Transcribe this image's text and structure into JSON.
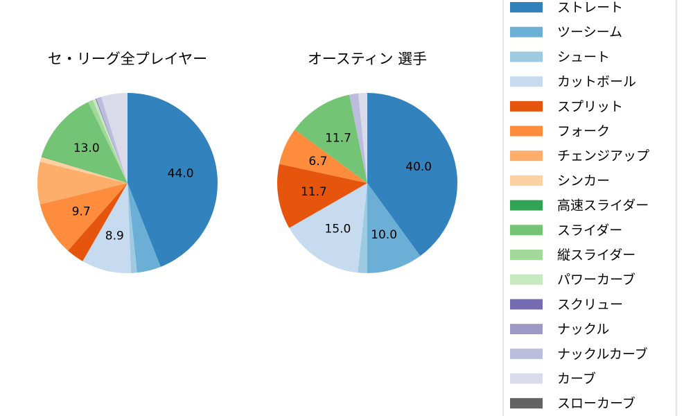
{
  "chart_data": {
    "type": "pie",
    "legend": {
      "placement": "right",
      "entries": [
        {
          "name": "ストレート",
          "color": "#3182bd"
        },
        {
          "name": "ツーシーム",
          "color": "#6baed6"
        },
        {
          "name": "シュート",
          "color": "#9ecae1"
        },
        {
          "name": "カットボール",
          "color": "#c6dbef"
        },
        {
          "name": "スプリット",
          "color": "#e6550d"
        },
        {
          "name": "フォーク",
          "color": "#fd8d3c"
        },
        {
          "name": "チェンジアップ",
          "color": "#fdae6b"
        },
        {
          "name": "シンカー",
          "color": "#fdd0a2"
        },
        {
          "name": "高速スライダー",
          "color": "#31a354"
        },
        {
          "name": "スライダー",
          "color": "#74c476"
        },
        {
          "name": "縦スライダー",
          "color": "#a1d99b"
        },
        {
          "name": "パワーカーブ",
          "color": "#c7e9c0"
        },
        {
          "name": "スクリュー",
          "color": "#756bb1"
        },
        {
          "name": "ナックル",
          "color": "#9e9ac8"
        },
        {
          "name": "ナックルカーブ",
          "color": "#bcbddc"
        },
        {
          "name": "カーブ",
          "color": "#dadaeb"
        },
        {
          "name": "スローカーブ",
          "color": "#636363"
        }
      ]
    },
    "pies": [
      {
        "title": "セ・リーグ全プレイヤー",
        "slices": [
          {
            "name": "ストレート",
            "value": 44.0,
            "label": "44.0"
          },
          {
            "name": "ツーシーム",
            "value": 4.3,
            "label": ""
          },
          {
            "name": "シュート",
            "value": 1.1,
            "label": ""
          },
          {
            "name": "カットボール",
            "value": 8.9,
            "label": "8.9"
          },
          {
            "name": "スプリット",
            "value": 3.2,
            "label": ""
          },
          {
            "name": "フォーク",
            "value": 9.7,
            "label": "9.7"
          },
          {
            "name": "チェンジアップ",
            "value": 7.6,
            "label": ""
          },
          {
            "name": "シンカー",
            "value": 0.9,
            "label": ""
          },
          {
            "name": "高速スライダー",
            "value": 0.1,
            "label": ""
          },
          {
            "name": "スライダー",
            "value": 13.0,
            "label": "13.0"
          },
          {
            "name": "縦スライダー",
            "value": 0.9,
            "label": ""
          },
          {
            "name": "パワーカーブ",
            "value": 0.5,
            "label": ""
          },
          {
            "name": "スクリュー",
            "value": 0.1,
            "label": ""
          },
          {
            "name": "ナックル",
            "value": 0.1,
            "label": ""
          },
          {
            "name": "ナックルカーブ",
            "value": 0.9,
            "label": ""
          },
          {
            "name": "カーブ",
            "value": 4.7,
            "label": ""
          }
        ]
      },
      {
        "title": "オースティン  選手",
        "slices": [
          {
            "name": "ストレート",
            "value": 40.0,
            "label": "40.0"
          },
          {
            "name": "ツーシーム",
            "value": 10.0,
            "label": "10.0"
          },
          {
            "name": "シュート",
            "value": 1.7,
            "label": ""
          },
          {
            "name": "カットボール",
            "value": 15.0,
            "label": "15.0"
          },
          {
            "name": "スプリット",
            "value": 11.7,
            "label": "11.7"
          },
          {
            "name": "フォーク",
            "value": 6.7,
            "label": "6.7"
          },
          {
            "name": "スライダー",
            "value": 11.7,
            "label": "11.7"
          },
          {
            "name": "ナックルカーブ",
            "value": 1.6,
            "label": ""
          },
          {
            "name": "カーブ",
            "value": 1.6,
            "label": ""
          }
        ]
      }
    ]
  }
}
